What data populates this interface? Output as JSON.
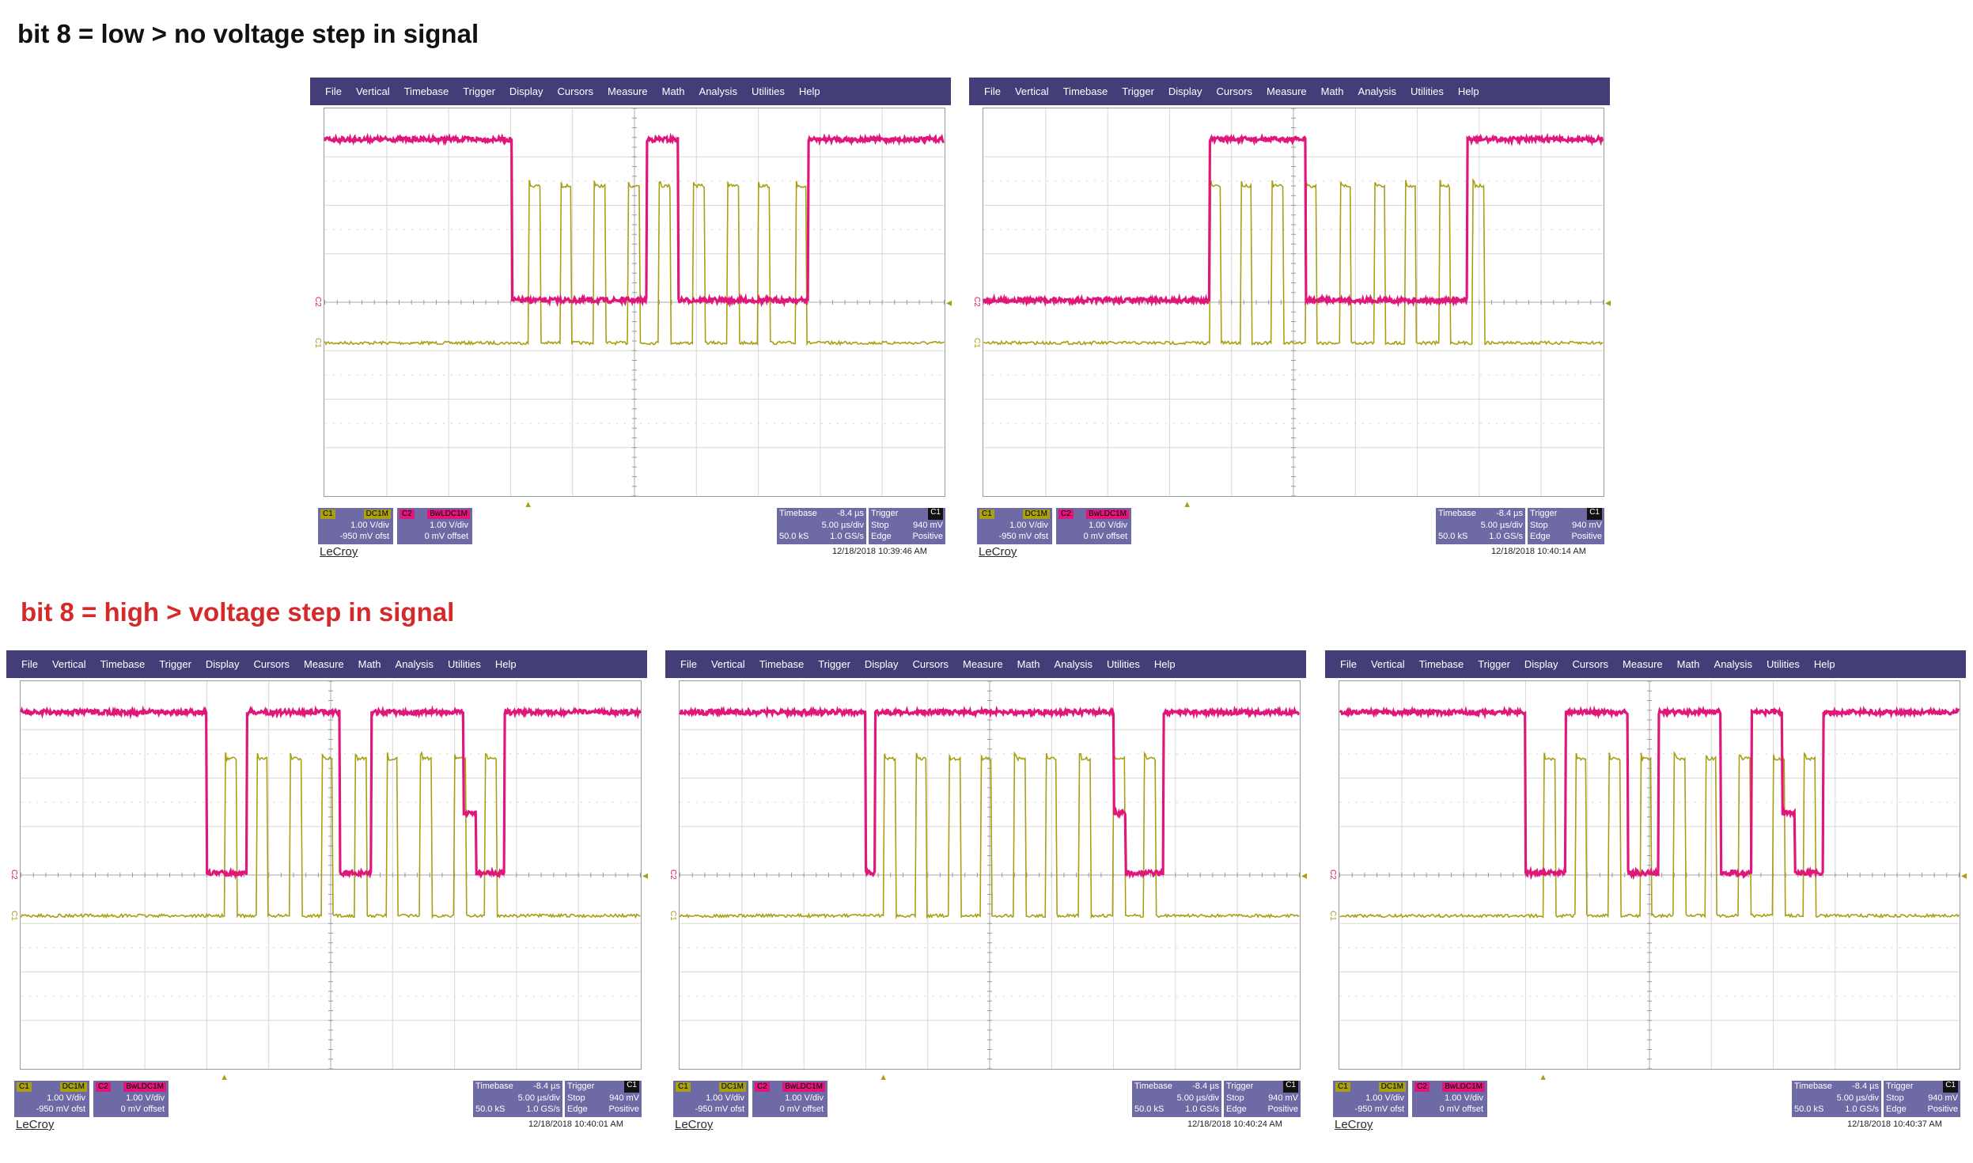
{
  "headings": {
    "low": "bit 8 = low > no voltage step in signal",
    "high": "bit 8 = high > voltage step in signal"
  },
  "colors": {
    "heading_low": "#111111",
    "heading_high": "#d42a2a",
    "menubar": "#443e78",
    "c1_trace": "#a8a012",
    "c2_trace": "#e0167a",
    "info_box": "#6e6aa6"
  },
  "menu": [
    "File",
    "Vertical",
    "Timebase",
    "Trigger",
    "Display",
    "Cursors",
    "Measure",
    "Math",
    "Analysis",
    "Utilities",
    "Help"
  ],
  "channel1": {
    "name": "C1",
    "coupling": "DC1M",
    "scale": "1.00 V/div",
    "offset": "-950 mV ofst"
  },
  "channel2": {
    "name": "C2",
    "coupling": "DC1M",
    "bw": "BwL",
    "scale": "1.00 V/div",
    "offset": "0 mV offset"
  },
  "timebase": {
    "label": "Timebase",
    "delay": "-8.4 µs",
    "per_div": "5.00 µs/div",
    "samples": "50.0 kS",
    "rate": "1.0 GS/s"
  },
  "trigger": {
    "label": "Trigger",
    "channel": "C1",
    "mode": "Stop",
    "level": "940 mV",
    "type": "Edge",
    "slope": "Positive"
  },
  "brand": "LeCroy",
  "screenshots": [
    {
      "timestamp": "12/18/2018 10:39:46 AM",
      "c2_level_segments": [
        [
          0.0,
          0.302,
          "high"
        ],
        [
          0.302,
          0.52,
          "low"
        ],
        [
          0.52,
          0.57,
          "high"
        ],
        [
          0.57,
          0.78,
          "low"
        ],
        [
          0.78,
          1.0,
          "high"
        ]
      ],
      "c1_pulses": [
        0.33,
        0.38,
        0.435,
        0.49,
        0.54,
        0.595,
        0.65,
        0.7,
        0.76
      ]
    },
    {
      "timestamp": "12/18/2018 10:40:14 AM",
      "c2_level_segments": [
        [
          0.0,
          0.365,
          "low"
        ],
        [
          0.365,
          0.52,
          "high"
        ],
        [
          0.52,
          0.78,
          "low"
        ],
        [
          0.78,
          1.0,
          "high"
        ]
      ],
      "c1_pulses": [
        0.365,
        0.415,
        0.465,
        0.52,
        0.575,
        0.63,
        0.68,
        0.735,
        0.79
      ]
    },
    {
      "timestamp": "12/18/2018 10:40:01 AM",
      "c2_level_segments": [
        [
          0.0,
          0.3,
          "high"
        ],
        [
          0.3,
          0.365,
          "low"
        ],
        [
          0.365,
          0.515,
          "high"
        ],
        [
          0.515,
          0.565,
          "low"
        ],
        [
          0.565,
          0.715,
          "high"
        ],
        [
          0.715,
          0.735,
          "step"
        ],
        [
          0.735,
          0.78,
          "low"
        ],
        [
          0.78,
          1.0,
          "high"
        ]
      ],
      "c1_pulses": [
        0.33,
        0.38,
        0.435,
        0.485,
        0.54,
        0.59,
        0.645,
        0.7,
        0.75
      ]
    },
    {
      "timestamp": "12/18/2018 10:40:24 AM",
      "c2_level_segments": [
        [
          0.0,
          0.3,
          "high"
        ],
        [
          0.3,
          0.315,
          "low"
        ],
        [
          0.315,
          0.7,
          "high"
        ],
        [
          0.7,
          0.72,
          "step"
        ],
        [
          0.72,
          0.78,
          "low"
        ],
        [
          0.78,
          1.0,
          "high"
        ]
      ],
      "c1_pulses": [
        0.33,
        0.38,
        0.435,
        0.485,
        0.54,
        0.59,
        0.645,
        0.7,
        0.75
      ]
    },
    {
      "timestamp": "12/18/2018 10:40:37 AM",
      "c2_level_segments": [
        [
          0.0,
          0.3,
          "high"
        ],
        [
          0.3,
          0.365,
          "low"
        ],
        [
          0.365,
          0.465,
          "high"
        ],
        [
          0.465,
          0.515,
          "low"
        ],
        [
          0.515,
          0.615,
          "high"
        ],
        [
          0.615,
          0.665,
          "low"
        ],
        [
          0.665,
          0.715,
          "high"
        ],
        [
          0.715,
          0.735,
          "step"
        ],
        [
          0.735,
          0.78,
          "low"
        ],
        [
          0.78,
          1.0,
          "high"
        ]
      ],
      "c1_pulses": [
        0.33,
        0.38,
        0.435,
        0.485,
        0.54,
        0.59,
        0.645,
        0.7,
        0.75
      ]
    }
  ]
}
